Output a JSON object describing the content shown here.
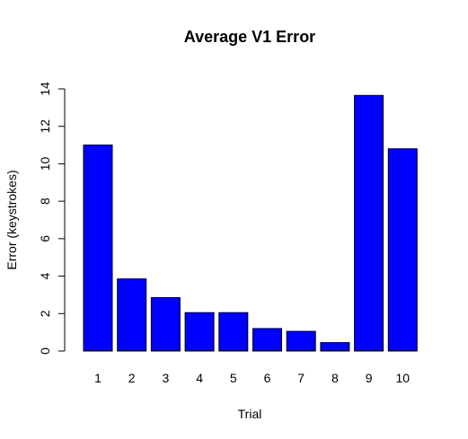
{
  "chart_data": {
    "type": "bar",
    "title": "Average V1 Error",
    "xlabel": "Trial",
    "ylabel": "Error (keystrokes)",
    "categories": [
      "1",
      "2",
      "3",
      "4",
      "5",
      "6",
      "7",
      "8",
      "9",
      "10"
    ],
    "values": [
      11.0,
      3.85,
      2.85,
      2.05,
      2.05,
      1.2,
      1.05,
      0.45,
      13.65,
      10.8
    ],
    "ylim": [
      0,
      14
    ],
    "yticks": [
      0,
      2,
      4,
      6,
      8,
      10,
      12,
      14
    ],
    "yticks_text": [
      "0",
      "2",
      "4",
      "6",
      "8",
      "10",
      "12",
      "14"
    ],
    "grid": false,
    "colors": {
      "bar_fill": "#0000FF",
      "bar_stroke": "#000000"
    }
  }
}
